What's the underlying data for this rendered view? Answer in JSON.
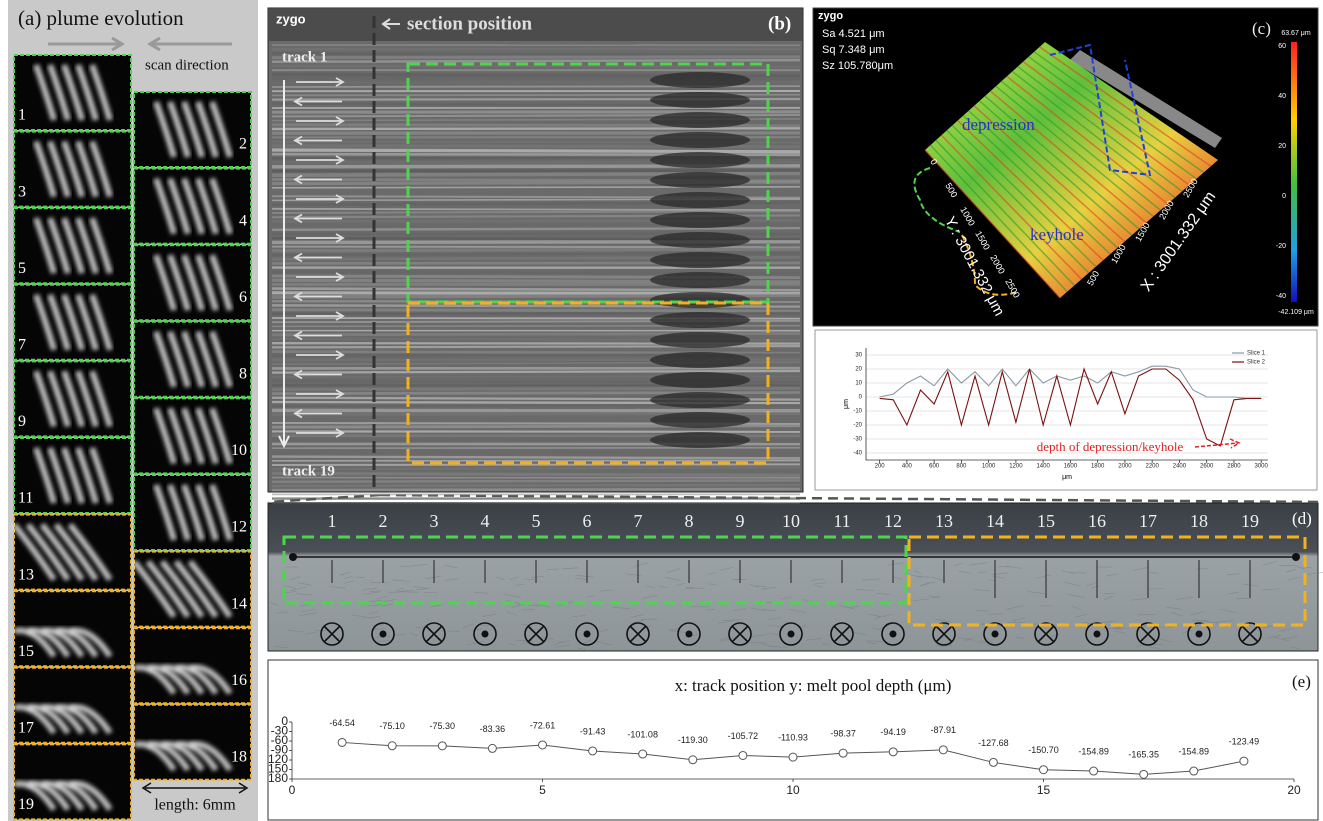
{
  "panel_a": {
    "label": "(a) plume evolution",
    "scan_direction": "scan direction",
    "frames": [
      "1",
      "2",
      "3",
      "4",
      "5",
      "6",
      "7",
      "8",
      "9",
      "10",
      "11",
      "12",
      "13",
      "14",
      "15",
      "16",
      "17",
      "18",
      "19"
    ],
    "length": "length: 6mm"
  },
  "panel_b": {
    "logo": "zygo",
    "label": "(b)",
    "section": "section position",
    "track_first": "track 1",
    "track_last": "track 19"
  },
  "panel_c": {
    "logo": "zygo",
    "label": "(c)",
    "stats": [
      "Sa 4.521    μm",
      "Sq 7.348    μm",
      "Sz 105.780μm"
    ],
    "depression": "depression",
    "keyhole": "keyhole",
    "x_axis": "X : 3001.332 μm",
    "y_axis": "Y : 3001.332 μm",
    "y_ticks": [
      "0",
      "500",
      "1000",
      "1500",
      "2000",
      "2500"
    ],
    "x_ticks": [
      "500",
      "1000",
      "1500",
      "2000",
      "2500"
    ],
    "colorbar_max": "63.67 μm",
    "colorbar_min": "-42.109 μm",
    "colorbar_ticks": [
      "60",
      "40",
      "20",
      "0",
      "-20",
      "-40"
    ]
  },
  "panel_d": {
    "label": "(d)",
    "tracks": [
      "1",
      "2",
      "3",
      "4",
      "5",
      "6",
      "7",
      "8",
      "9",
      "10",
      "11",
      "12",
      "13",
      "14",
      "15",
      "16",
      "17",
      "18",
      "19"
    ]
  },
  "panel_e": {
    "label": "(e)"
  },
  "chart_data": [
    {
      "type": "line",
      "x_label": "μm",
      "y_label": "μm",
      "annotation": "depth of depression/keyhole",
      "x": [
        200,
        300,
        400,
        500,
        600,
        700,
        800,
        900,
        1000,
        1100,
        1200,
        1300,
        1400,
        1500,
        1600,
        1700,
        1800,
        1900,
        2000,
        2100,
        2200,
        2300,
        2400,
        2500,
        2600,
        2700,
        2800,
        2900,
        3000
      ],
      "series": [
        {
          "name": "Slice 1",
          "color": "#8a9aa6",
          "values": [
            0,
            2,
            10,
            15,
            8,
            20,
            10,
            18,
            8,
            20,
            8,
            20,
            10,
            15,
            12,
            15,
            10,
            18,
            15,
            18,
            22,
            22,
            20,
            5,
            0,
            0,
            0,
            -1,
            -1
          ]
        },
        {
          "name": "Slice 2",
          "color": "#7a1010",
          "values": [
            -1,
            -2,
            -20,
            5,
            -5,
            18,
            -20,
            15,
            -20,
            18,
            -18,
            20,
            -20,
            15,
            -20,
            20,
            -5,
            18,
            -12,
            15,
            20,
            20,
            12,
            -2,
            -30,
            -35,
            -2,
            -1,
            -1
          ]
        }
      ],
      "xlim": [
        100,
        3050
      ],
      "xticks": [
        200,
        400,
        600,
        800,
        1000,
        1200,
        1400,
        1600,
        1800,
        2000,
        2200,
        2400,
        2600,
        2800,
        3000
      ],
      "ylim": [
        -45,
        35
      ],
      "yticks": [
        30,
        20,
        10,
        0,
        -10,
        -20,
        -30,
        -40
      ],
      "grid": true,
      "legend": "upper right"
    },
    {
      "type": "line",
      "title": "x: track position   y: melt pool depth (μm)",
      "x": [
        1,
        2,
        3,
        4,
        5,
        6,
        7,
        8,
        9,
        10,
        11,
        12,
        13,
        14,
        15,
        16,
        17,
        18,
        19
      ],
      "values": [
        -64.54,
        -75.1,
        -75.3,
        -83.36,
        -72.61,
        -91.43,
        -101.08,
        -119.3,
        -105.72,
        -110.93,
        -98.37,
        -94.19,
        -87.91,
        -127.68,
        -150.7,
        -154.89,
        -165.35,
        -154.89,
        -123.49
      ],
      "value_labels": [
        "-64.54",
        "-75.10",
        "-75.30",
        "-83.36",
        "-72.61",
        "-91.43",
        "-101.08",
        "-119.30",
        "-105.72",
        "-110.93",
        "-98.37",
        "-94.19",
        "-87.91",
        "-127.68",
        "-150.70",
        "-154.89",
        "-165.35",
        "-154.89",
        "-123.49"
      ],
      "color": "#555555",
      "xlim": [
        0,
        20
      ],
      "xticks": [
        0,
        5,
        10,
        15,
        20
      ],
      "ylim": [
        -180,
        0
      ],
      "yticks": [
        0,
        -30,
        -60,
        -90,
        {
          "value": -120,
          "label": "120"
        },
        {
          "value": -150,
          "label": "150"
        },
        {
          "value": -180,
          "label": "180"
        }
      ]
    }
  ]
}
